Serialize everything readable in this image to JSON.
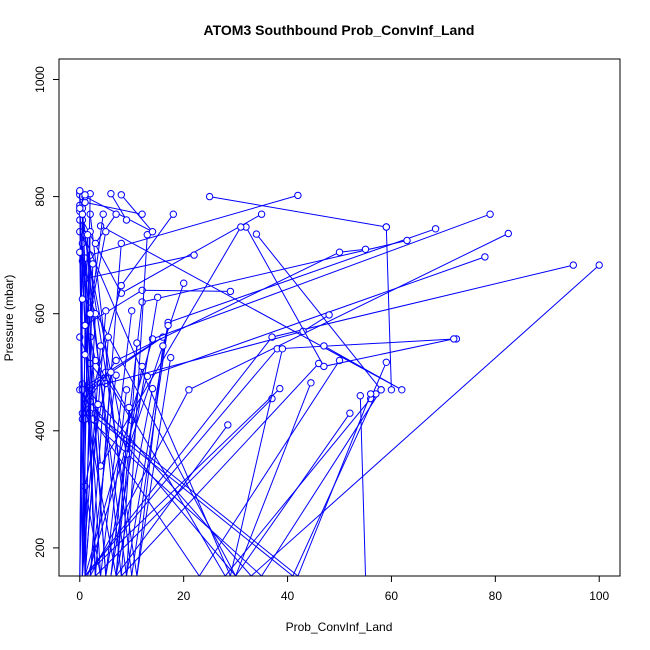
{
  "chart_data": {
    "type": "line",
    "title": "ATOM3 Southbound Prob_ConvInf_Land",
    "xlabel": "Prob_ConvInf_Land",
    "ylabel": "Pressure (mbar)",
    "xlim": [
      -4,
      104
    ],
    "ylim": [
      1035,
      152
    ],
    "y_reversed": true,
    "x_ticks": [
      0,
      20,
      40,
      60,
      80,
      100
    ],
    "y_ticks": [
      200,
      400,
      600,
      800,
      1000
    ],
    "grid": false,
    "legend": "none",
    "marker": "open-circle",
    "series_color": "#0000ff",
    "series": [
      {
        "x": [
          4,
          1,
          5,
          2,
          0
        ],
        "y": [
          152,
          305,
          481,
          515,
          560
        ]
      },
      {
        "x": [
          28.5,
          7,
          10,
          3,
          2
        ],
        "y": [
          410,
          152,
          418,
          520,
          560
        ]
      },
      {
        "x": [
          44.5,
          30,
          0,
          16,
          1
        ],
        "y": [
          482,
          152,
          470,
          560,
          470
        ]
      },
      {
        "x": [
          59,
          56,
          28,
          5,
          1
        ],
        "y": [
          517,
          455,
          152,
          500,
          455
        ]
      },
      {
        "x": [
          100,
          33,
          0.5,
          0.5
        ],
        "y": [
          683,
          152,
          480,
          420
        ]
      },
      {
        "x": [
          95,
          37,
          1,
          1
        ],
        "y": [
          683,
          560,
          152,
          465
        ]
      },
      {
        "x": [
          82.5,
          21,
          2
        ],
        "y": [
          737,
          470,
          152
        ]
      },
      {
        "x": [
          79,
          14,
          1
        ],
        "y": [
          770,
          557,
          152
        ]
      },
      {
        "x": [
          78,
          13,
          1.5
        ],
        "y": [
          697,
          493,
          152
        ]
      },
      {
        "x": [
          72.5,
          38,
          1
        ],
        "y": [
          557,
          540,
          152
        ]
      },
      {
        "x": [
          68.5,
          17,
          9
        ],
        "y": [
          745,
          585,
          152
        ]
      },
      {
        "x": [
          63,
          12,
          6
        ],
        "y": [
          725,
          620,
          152
        ]
      },
      {
        "x": [
          59,
          60
        ],
        "y": [
          748,
          470
        ]
      },
      {
        "x": [
          58,
          35,
          0.5
        ],
        "y": [
          470,
          152,
          430
        ]
      },
      {
        "x": [
          57,
          41,
          2
        ],
        "y": [
          463,
          152,
          430
        ]
      },
      {
        "x": [
          56,
          42,
          3
        ],
        "y": [
          463,
          152,
          430
        ]
      },
      {
        "x": [
          54,
          55
        ],
        "y": [
          460,
          152
        ]
      },
      {
        "x": [
          55,
          50,
          7,
          1
        ],
        "y": [
          710,
          705,
          520,
          445
        ]
      },
      {
        "x": [
          52,
          30,
          2
        ],
        "y": [
          430,
          152,
          620
        ]
      },
      {
        "x": [
          50,
          23,
          2.5
        ],
        "y": [
          520,
          152,
          420
        ]
      },
      {
        "x": [
          48,
          43,
          0.5
        ],
        "y": [
          598,
          570,
          470
        ]
      },
      {
        "x": [
          47,
          62,
          4
        ],
        "y": [
          545,
          470,
          750
        ]
      },
      {
        "x": [
          46,
          8,
          0.5
        ],
        "y": [
          515,
          152,
          780
        ]
      },
      {
        "x": [
          42,
          2,
          2
        ],
        "y": [
          802,
          700,
          450
        ]
      },
      {
        "x": [
          37,
          3,
          0.5
        ],
        "y": [
          455,
          152,
          690
        ]
      },
      {
        "x": [
          39,
          29,
          0.5
        ],
        "y": [
          540,
          152,
          738
        ]
      },
      {
        "x": [
          38.5,
          1,
          0
        ],
        "y": [
          472,
          152,
          808
        ]
      },
      {
        "x": [
          35,
          8,
          0.5
        ],
        "y": [
          770,
          635,
          760
        ]
      },
      {
        "x": [
          34,
          58
        ],
        "y": [
          736,
          470
        ]
      },
      {
        "x": [
          32,
          47,
          72
        ],
        "y": [
          748,
          510,
          557
        ]
      },
      {
        "x": [
          31,
          4,
          0
        ],
        "y": [
          748,
          340,
          803
        ]
      },
      {
        "x": [
          29,
          12,
          1
        ],
        "y": [
          638,
          640,
          580
        ]
      },
      {
        "x": [
          25,
          59
        ],
        "y": [
          800,
          748
        ]
      },
      {
        "x": [
          22,
          1
        ],
        "y": [
          700,
          660
        ]
      },
      {
        "x": [
          20,
          9,
          0
        ],
        "y": [
          652,
          360,
          775
        ]
      },
      {
        "x": [
          18,
          8,
          1
        ],
        "y": [
          770,
          648,
          420
        ]
      },
      {
        "x": [
          17.5,
          11
        ],
        "y": [
          525,
          152
        ]
      },
      {
        "x": [
          17,
          10,
          2
        ],
        "y": [
          580,
          152,
          770
        ]
      },
      {
        "x": [
          16,
          11,
          1
        ],
        "y": [
          545,
          152,
          735
        ]
      },
      {
        "x": [
          15,
          6
        ],
        "y": [
          628,
          152
        ]
      },
      {
        "x": [
          14,
          7,
          0.5
        ],
        "y": [
          472,
          152,
          470
        ]
      },
      {
        "x": [
          13,
          9,
          1
        ],
        "y": [
          735,
          152,
          695
        ]
      },
      {
        "x": [
          12,
          5,
          0
        ],
        "y": [
          510,
          152,
          760
        ]
      },
      {
        "x": [
          11,
          8
        ],
        "y": [
          550,
          152
        ]
      },
      {
        "x": [
          10,
          4,
          0
        ],
        "y": [
          605,
          152,
          740
        ]
      },
      {
        "x": [
          9.5,
          7
        ],
        "y": [
          440,
          152
        ]
      },
      {
        "x": [
          9,
          5,
          0.5
        ],
        "y": [
          470,
          152,
          720
        ]
      },
      {
        "x": [
          8,
          3,
          0.5
        ],
        "y": [
          720,
          152,
          800
        ]
      },
      {
        "x": [
          7,
          2
        ],
        "y": [
          495,
          152
        ]
      },
      {
        "x": [
          6,
          3,
          0
        ],
        "y": [
          500,
          152,
          785
        ]
      },
      {
        "x": [
          5.5,
          2
        ],
        "y": [
          560,
          152
        ]
      },
      {
        "x": [
          5,
          1
        ],
        "y": [
          605,
          152
        ]
      },
      {
        "x": [
          4,
          0.5,
          2
        ],
        "y": [
          545,
          152,
          805
        ]
      },
      {
        "x": [
          3.5,
          1
        ],
        "y": [
          445,
          152
        ]
      },
      {
        "x": [
          3,
          0.5,
          0
        ],
        "y": [
          600,
          152,
          810
        ]
      },
      {
        "x": [
          2.5,
          1,
          0
        ],
        "y": [
          685,
          152,
          705
        ]
      },
      {
        "x": [
          2,
          0.5
        ],
        "y": [
          740,
          152
        ]
      },
      {
        "x": [
          1.5,
          0,
          0.5
        ],
        "y": [
          735,
          152,
          770
        ]
      },
      {
        "x": [
          1,
          0.5
        ],
        "y": [
          580,
          152
        ]
      },
      {
        "x": [
          0.5,
          0
        ],
        "y": [
          625,
          152
        ]
      },
      {
        "x": [
          12,
          1
        ],
        "y": [
          770,
          790
        ]
      },
      {
        "x": [
          8,
          14,
          1
        ],
        "y": [
          803,
          740,
          800
        ]
      },
      {
        "x": [
          6,
          9
        ],
        "y": [
          805,
          760
        ]
      },
      {
        "x": [
          4.5,
          1
        ],
        "y": [
          770,
          530
        ]
      },
      {
        "x": [
          7,
          3
        ],
        "y": [
          770,
          720
        ]
      },
      {
        "x": [
          0,
          1
        ],
        "y": [
          780,
          803
        ]
      },
      {
        "x": [
          2,
          5
        ],
        "y": [
          600,
          740
        ]
      }
    ]
  }
}
